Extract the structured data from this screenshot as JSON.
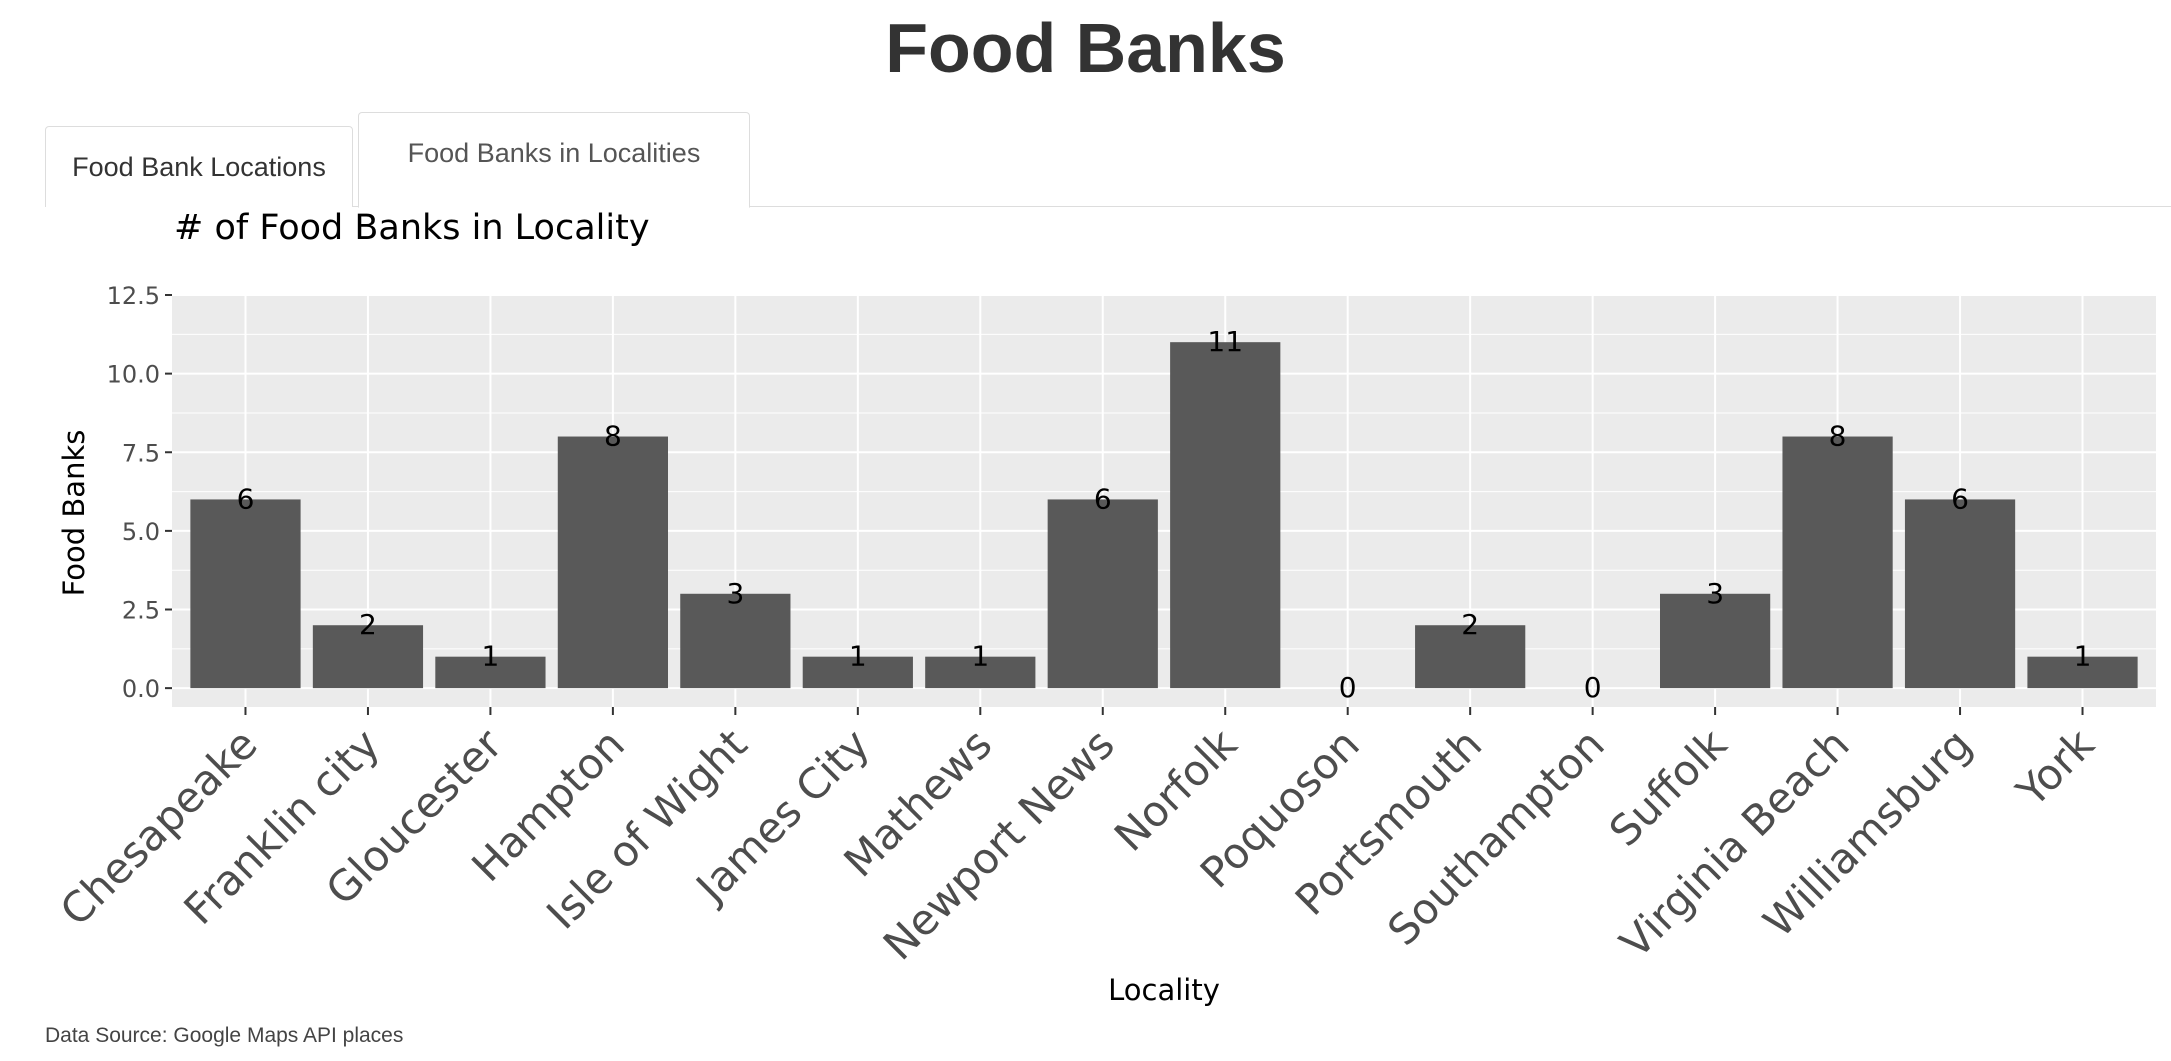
{
  "page": {
    "title": "Food Banks",
    "footer": "Data Source: Google Maps API places"
  },
  "tabs": [
    {
      "label": "Food Bank Locations",
      "active": false
    },
    {
      "label": "Food Banks in Localities",
      "active": true
    }
  ],
  "colors": {
    "panel_background": "#ebebeb",
    "grid": "#ffffff",
    "bar": "#595959",
    "text": "#000000",
    "tick_text": "#4d4d4d"
  },
  "chart_data": {
    "type": "bar",
    "title": "# of Food Banks in Locality",
    "xlabel": "Locality",
    "ylabel": "Food Banks",
    "ylim": [
      -0.6,
      12.5
    ],
    "yticks": [
      "0.0",
      "2.5",
      "5.0",
      "7.5",
      "10.0",
      "12.5"
    ],
    "ytick_values": [
      0,
      2.5,
      5,
      7.5,
      10,
      12.5
    ],
    "grid": true,
    "categories": [
      "Chesapeake",
      "Franklin city",
      "Gloucester",
      "Hampton",
      "Isle of Wight",
      "James City",
      "Mathews",
      "Newport News",
      "Norfolk",
      "Poquoson",
      "Portsmouth",
      "Southampton",
      "Suffolk",
      "Virginia Beach",
      "Williamsburg",
      "York"
    ],
    "values": [
      6,
      2,
      1,
      8,
      3,
      1,
      1,
      6,
      11,
      0,
      2,
      0,
      3,
      8,
      6,
      1
    ],
    "data_labels": [
      "6",
      "2",
      "1",
      "8",
      "3",
      "1",
      "1",
      "6",
      "11",
      "0",
      "2",
      "0",
      "3",
      "8",
      "6",
      "1"
    ]
  }
}
